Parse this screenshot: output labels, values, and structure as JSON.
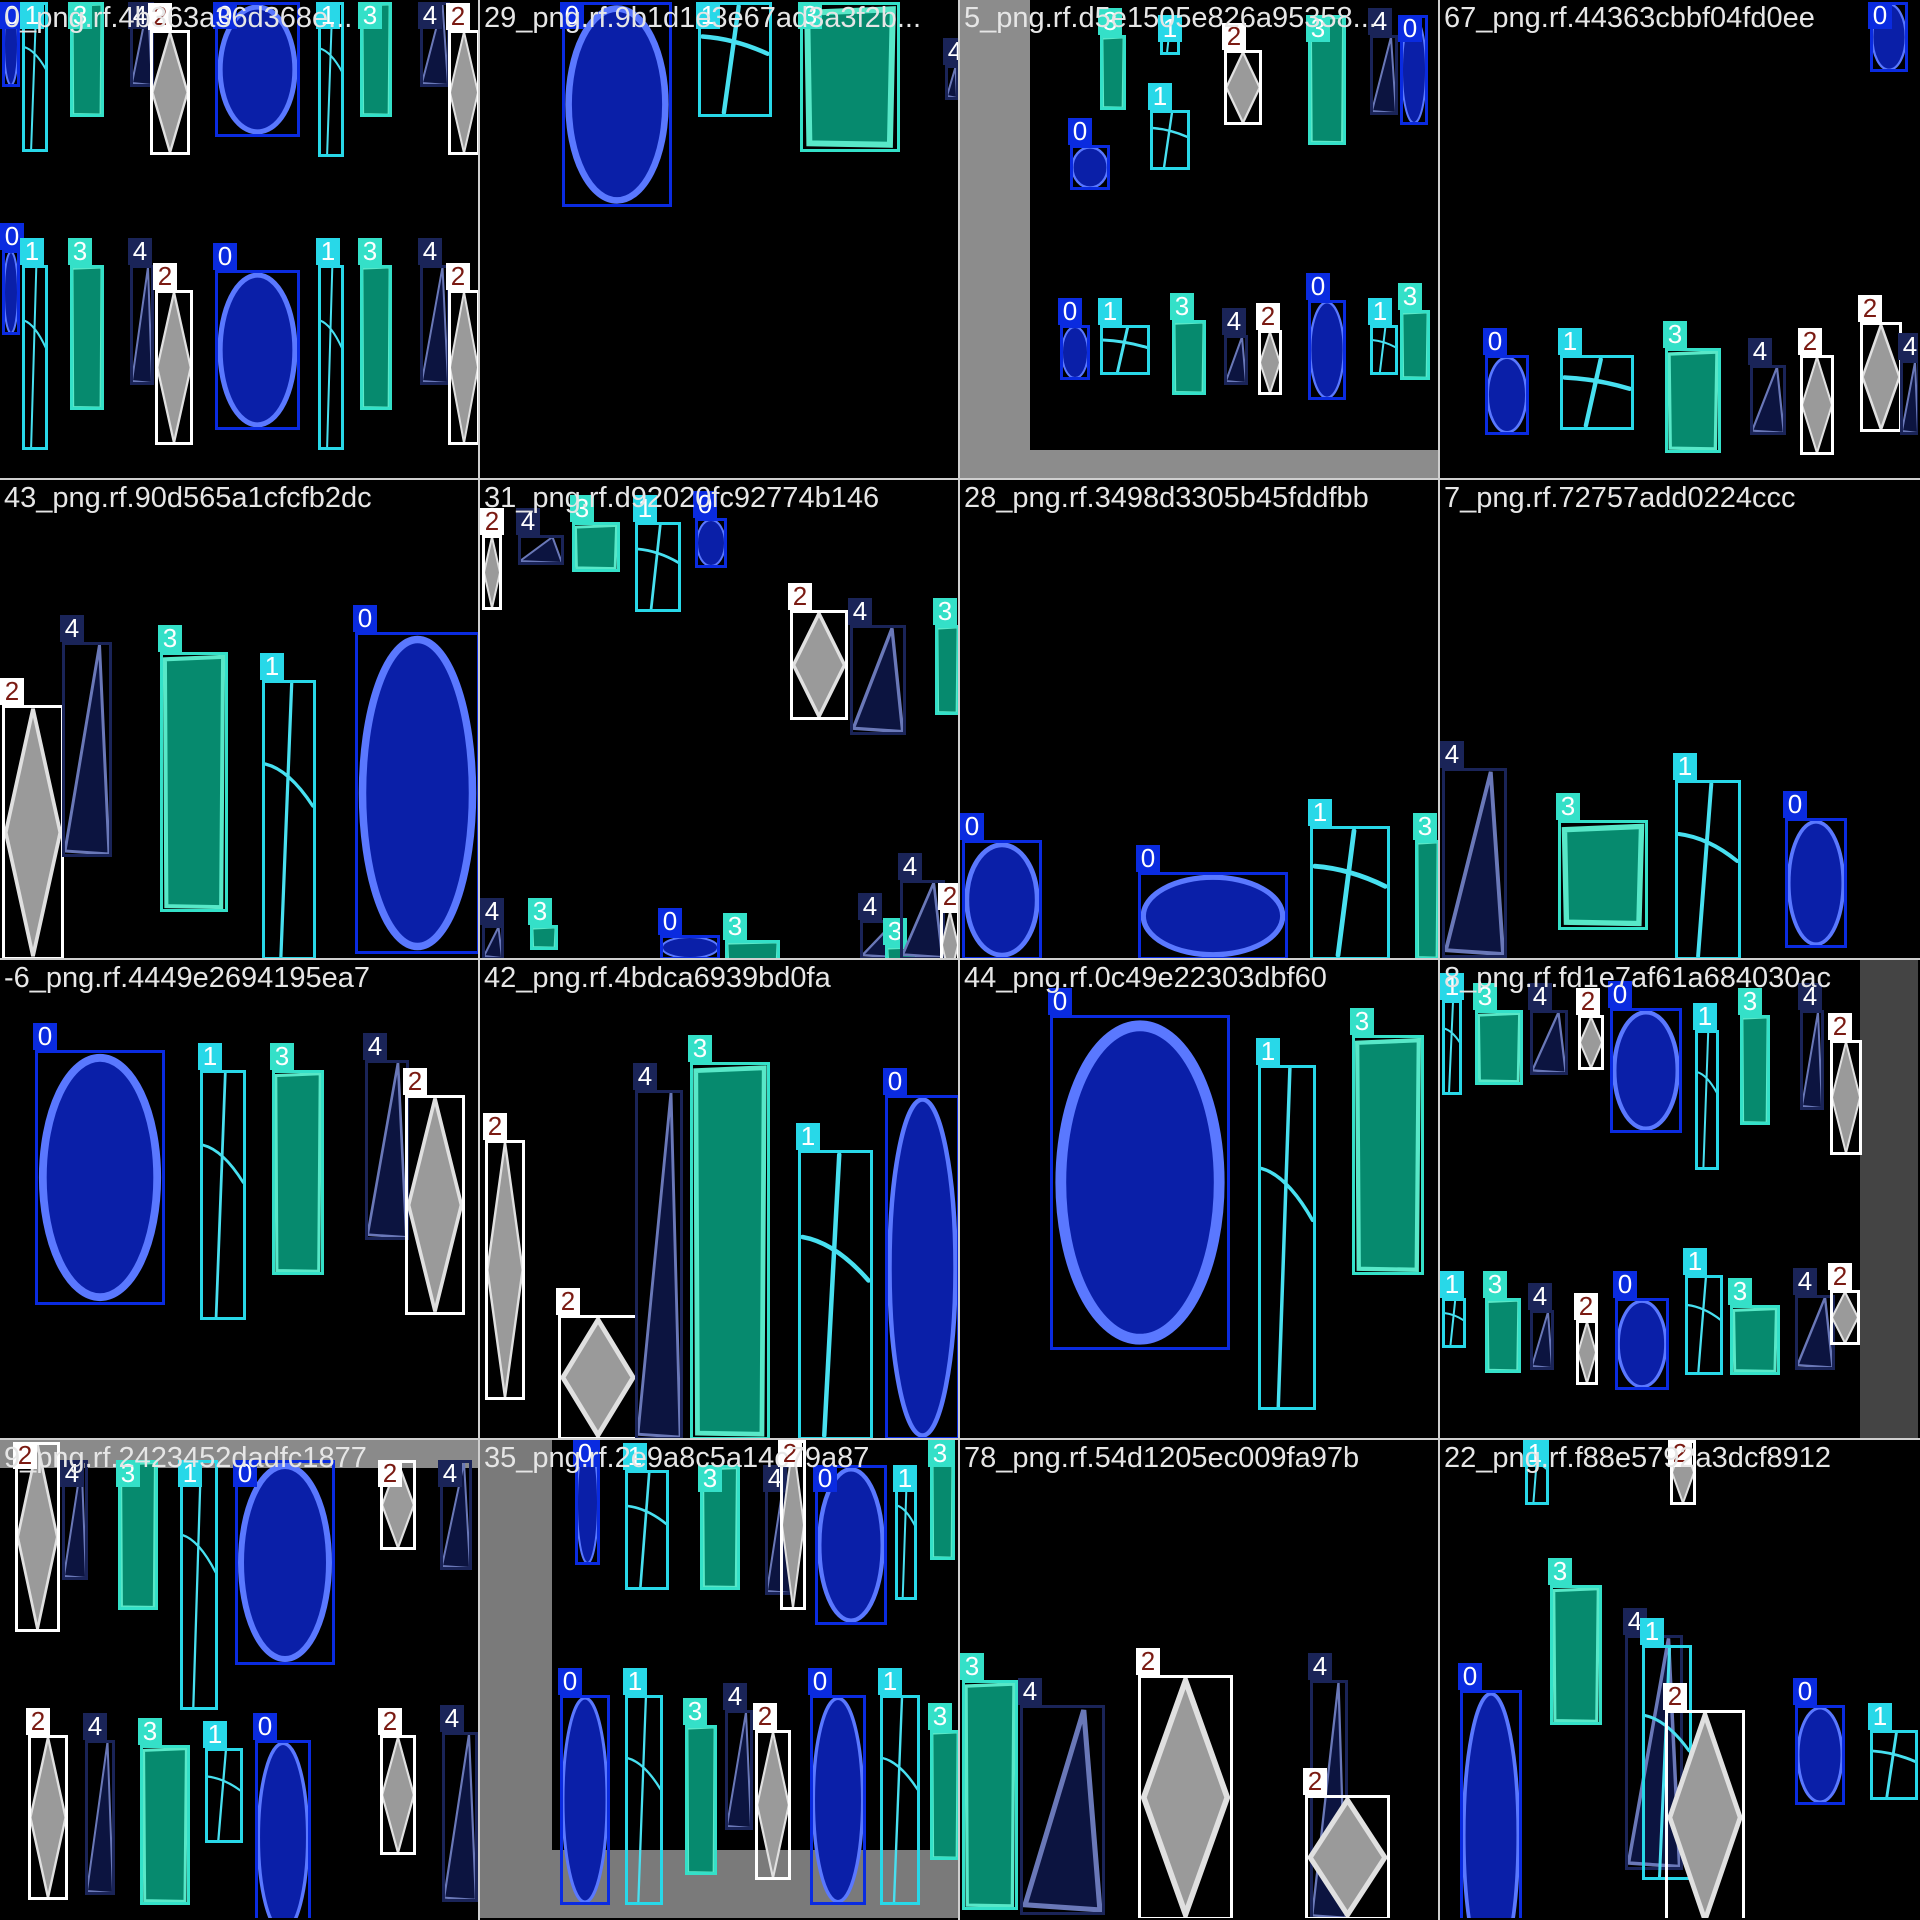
{
  "mosaic": {
    "title": "",
    "classes": [
      {
        "id": "0",
        "name": "",
        "box_color": "#0a2be0",
        "tag_text_color": "#ffffff",
        "fill": "#0a1fa8",
        "stroke": "#5a78ff",
        "shape": "oval"
      },
      {
        "id": "1",
        "name": "",
        "box_color": "#28d8e8",
        "tag_text_color": "#ffffff",
        "fill": "none",
        "stroke": "#48e0f0",
        "shape": "cross"
      },
      {
        "id": "2",
        "name": "",
        "box_color": "#ffffff",
        "tag_text_color": "#7a1a12",
        "fill": "#9a9a9a",
        "stroke": "#e0e0e0",
        "shape": "diamond"
      },
      {
        "id": "3",
        "name": "",
        "box_color": "#34e0c8",
        "tag_text_color": "#ffffff",
        "fill": "#068a6e",
        "stroke": "#58e8c8",
        "shape": "rect"
      },
      {
        "id": "4",
        "name": "",
        "box_color": "#1a2458",
        "tag_text_color": "#ffffff",
        "fill": "#0c1440",
        "stroke": "#6a78b8",
        "shape": "triangle"
      }
    ],
    "tiles": [
      {
        "label": "0_png.rf.4b363a36d368e...",
        "detections": [
          "0",
          "1",
          "3",
          "4",
          "2",
          "0",
          "1",
          "3",
          "4",
          "2",
          "0",
          "1",
          "3",
          "4",
          "2",
          "0",
          "1",
          "3",
          "4",
          "2"
        ]
      },
      {
        "label": "29_png.rf.9b1d1e3e67ad3a3f2b...",
        "detections": [
          "0",
          "1",
          "3",
          "4"
        ]
      },
      {
        "label": "5_png.rf.d5e1505e826a95358...",
        "detections": [
          "3",
          "1",
          "2",
          "0",
          "1",
          "3",
          "4",
          "0",
          "0",
          "1",
          "3",
          "4",
          "2",
          "0",
          "1",
          "3"
        ]
      },
      {
        "label": "67_png.rf.44363cbbf04fd0ee",
        "detections": [
          "0",
          "0",
          "1",
          "3",
          "4",
          "2",
          "2",
          "4"
        ]
      },
      {
        "label": "43_png.rf.90d565a1cfcfb2dc",
        "detections": [
          "2",
          "4",
          "3",
          "1",
          "0"
        ]
      },
      {
        "label": "31_png.rf.d92020fc92774b146",
        "detections": [
          "2",
          "4",
          "3",
          "1",
          "0",
          "2",
          "4",
          "3",
          "4",
          "3",
          "0",
          "3",
          "4",
          "3",
          "4",
          "2"
        ]
      },
      {
        "label": "28_png.rf.3498d3305b45fddfbb",
        "detections": [
          "0",
          "0",
          "1",
          "3"
        ]
      },
      {
        "label": "7_png.rf.72757add0224ccc",
        "detections": [
          "4",
          "3",
          "1",
          "0"
        ]
      },
      {
        "label": "-6_png.rf.4449e2694195ea7",
        "detections": [
          "0",
          "1",
          "3",
          "4",
          "2"
        ]
      },
      {
        "label": "42_png.rf.4bdca6939bd0fa",
        "detections": [
          "2",
          "2",
          "4",
          "3",
          "1",
          "0",
          "0"
        ]
      },
      {
        "label": "44_png.rf.0c49e22303dbf60",
        "detections": [
          "0",
          "1",
          "3"
        ]
      },
      {
        "label": "8_png.rf.fd1e7af61a684030ac",
        "detections": [
          "1",
          "3",
          "4",
          "2",
          "0",
          "1",
          "3",
          "4",
          "2",
          "1",
          "3",
          "4",
          "2",
          "0",
          "1",
          "3",
          "4",
          "2"
        ]
      },
      {
        "label": "9_png.rf.2423452dadfc1877",
        "detections": [
          "2",
          "4",
          "3",
          "1",
          "0",
          "2",
          "4",
          "2",
          "4",
          "3",
          "1",
          "0",
          "2",
          "4"
        ]
      },
      {
        "label": "35_png.rf.2e9a8c5a14c79a87",
        "detections": [
          "0",
          "1",
          "3",
          "4",
          "2",
          "0",
          "1",
          "3",
          "0",
          "1",
          "3",
          "4",
          "2",
          "0",
          "1",
          "3"
        ]
      },
      {
        "label": "78_png.rf.54d1205ec009fa97b",
        "detections": [
          "3",
          "4",
          "2",
          "4",
          "2"
        ]
      },
      {
        "label": "22_png.rf.f88e5792a3dcf8912",
        "detections": [
          "1",
          "2",
          "3",
          "4",
          "1",
          "0",
          "2",
          "0",
          "1"
        ]
      }
    ]
  }
}
